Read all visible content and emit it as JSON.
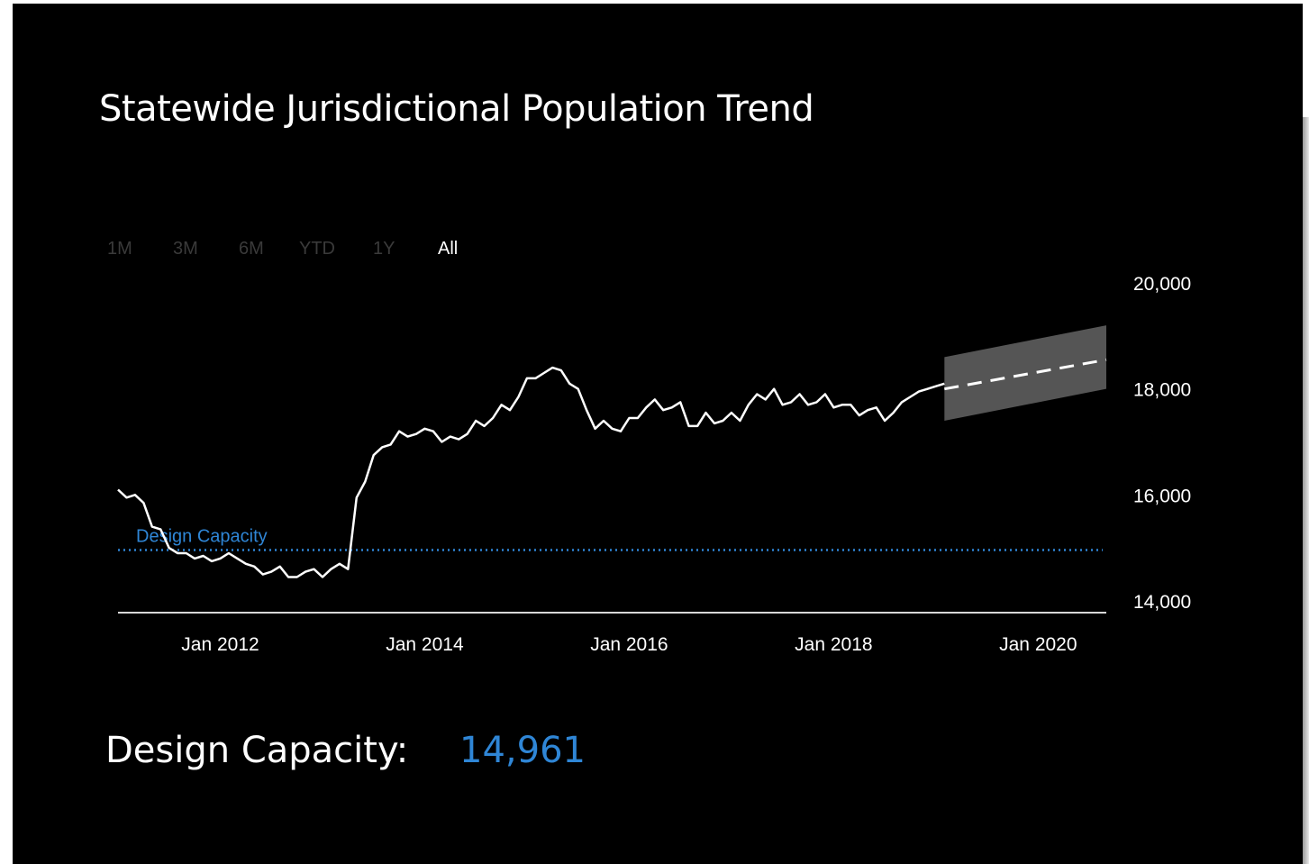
{
  "title": "Statewide Jurisdictional Population Trend",
  "range_buttons": [
    {
      "label": "1M",
      "active": false
    },
    {
      "label": "3M",
      "active": false
    },
    {
      "label": "6M",
      "active": false
    },
    {
      "label": "YTD",
      "active": false
    },
    {
      "label": "1Y",
      "active": false
    },
    {
      "label": "All",
      "active": true
    }
  ],
  "summary": {
    "label": "Design Capacity:",
    "value": "14,961"
  },
  "colors": {
    "background": "#000000",
    "line": "#ffffff",
    "forecast_band": "#555555",
    "design_capacity": "#2f86d6",
    "inactive_button": "#3a3a3a"
  },
  "chart_data": {
    "type": "line",
    "title": "Statewide Jurisdictional Population Trend",
    "x_tick_labels": [
      "Jan 2012",
      "Jan 2014",
      "Jan 2016",
      "Jan 2018",
      "Jan 2020"
    ],
    "x_tick_dates": [
      "2012-01",
      "2014-01",
      "2016-01",
      "2018-01",
      "2020-01"
    ],
    "xlim": [
      "2011-01",
      "2020-09"
    ],
    "y_ticks": [
      14000,
      16000,
      18000,
      20000
    ],
    "y_tick_labels": [
      "14,000",
      "16,000",
      "18,000",
      "20,000"
    ],
    "ylim": [
      14000,
      20000
    ],
    "y_axis_side": "right",
    "grid": false,
    "series": [
      {
        "style": "solid",
        "x": [
          "2011-01",
          "2011-02",
          "2011-03",
          "2011-04",
          "2011-05",
          "2011-06",
          "2011-07",
          "2011-08",
          "2011-09",
          "2011-10",
          "2011-11",
          "2011-12",
          "2012-01",
          "2012-02",
          "2012-03",
          "2012-04",
          "2012-05",
          "2012-06",
          "2012-07",
          "2012-08",
          "2012-09",
          "2012-10",
          "2012-11",
          "2012-12",
          "2013-01",
          "2013-02",
          "2013-03",
          "2013-04",
          "2013-05",
          "2013-06",
          "2013-07",
          "2013-08",
          "2013-09",
          "2013-10",
          "2013-11",
          "2013-12",
          "2014-01",
          "2014-02",
          "2014-03",
          "2014-04",
          "2014-05",
          "2014-06",
          "2014-07",
          "2014-08",
          "2014-09",
          "2014-10",
          "2014-11",
          "2014-12",
          "2015-01",
          "2015-02",
          "2015-03",
          "2015-04",
          "2015-05",
          "2015-06",
          "2015-07",
          "2015-08",
          "2015-09",
          "2015-10",
          "2015-11",
          "2015-12",
          "2016-01",
          "2016-02",
          "2016-03",
          "2016-04",
          "2016-05",
          "2016-06",
          "2016-07",
          "2016-08",
          "2016-09",
          "2016-10",
          "2016-11",
          "2016-12",
          "2017-01",
          "2017-02",
          "2017-03",
          "2017-04",
          "2017-05",
          "2017-06",
          "2017-07",
          "2017-08",
          "2017-09",
          "2017-10",
          "2017-11",
          "2017-12",
          "2018-01",
          "2018-02",
          "2018-03",
          "2018-04",
          "2018-05",
          "2018-06",
          "2018-07",
          "2018-08",
          "2018-09",
          "2018-10",
          "2018-11",
          "2018-12",
          "2019-01",
          "2019-02"
        ],
        "y": [
          16100,
          15950,
          16000,
          15850,
          15400,
          15350,
          15000,
          14900,
          14900,
          14800,
          14850,
          14750,
          14800,
          14900,
          14800,
          14700,
          14650,
          14500,
          14550,
          14650,
          14450,
          14450,
          14550,
          14600,
          14450,
          14600,
          14700,
          14600,
          15950,
          16250,
          16750,
          16900,
          16950,
          17200,
          17100,
          17150,
          17250,
          17200,
          17000,
          17100,
          17050,
          17150,
          17400,
          17300,
          17450,
          17700,
          17600,
          17850,
          18200,
          18200,
          18300,
          18400,
          18350,
          18100,
          18000,
          17600,
          17250,
          17400,
          17250,
          17200,
          17450,
          17450,
          17650,
          17800,
          17600,
          17650,
          17750,
          17300,
          17300,
          17550,
          17350,
          17400,
          17550,
          17400,
          17700,
          17900,
          17800,
          18000,
          17700,
          17750,
          17900,
          17700,
          17750,
          17900,
          17650,
          17700,
          17700,
          17500,
          17600,
          17650,
          17400,
          17550,
          17750,
          17850,
          17950,
          18000,
          18050,
          18100
        ]
      },
      {
        "style": "dashed",
        "x": [
          "2019-02",
          "2020-09"
        ],
        "y": [
          18000,
          18550
        ]
      }
    ],
    "band": {
      "x": [
        "2019-02",
        "2020-09"
      ],
      "upper": [
        18600,
        19200
      ],
      "lower": [
        17400,
        18000
      ]
    },
    "reference_line": {
      "label": "Design Capacity",
      "y": 14961,
      "style": "dotted"
    }
  }
}
